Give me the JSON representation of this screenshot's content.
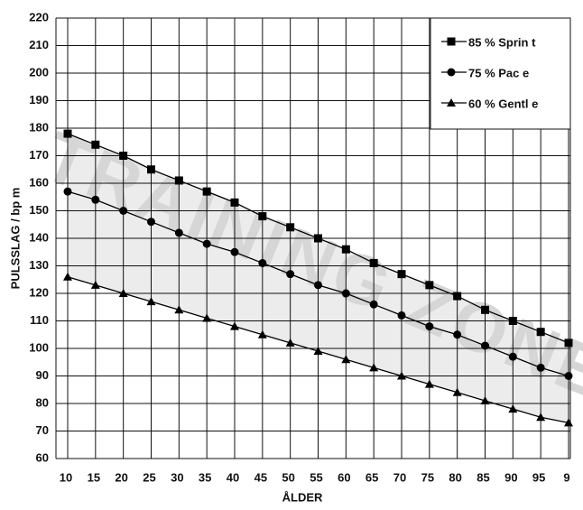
{
  "chart_data": {
    "type": "line",
    "x_label": "ÅLDER",
    "y_label": "PULSSLAG / bp m",
    "watermark": "TRAINING ZONE",
    "categories": [
      "10",
      "15",
      "20",
      "25",
      "30",
      "35",
      "40",
      "45",
      "50",
      "55",
      "60",
      "65",
      "70",
      "75",
      "80",
      "85",
      "90",
      "95",
      "9"
    ],
    "series": [
      {
        "name": "85 % Sprin t",
        "color": "#000000",
        "marker": "square",
        "values": [
          178,
          174,
          170,
          165,
          161,
          157,
          153,
          148,
          144,
          140,
          136,
          131,
          127,
          123,
          119,
          114,
          110,
          106,
          102
        ]
      },
      {
        "name": "75 % Pac e",
        "color": "#000000",
        "marker": "circle",
        "values": [
          157,
          154,
          150,
          146,
          142,
          138,
          135,
          131,
          127,
          123,
          120,
          116,
          112,
          108,
          105,
          101,
          97,
          93,
          90
        ]
      },
      {
        "name": "60 % Gentl e",
        "color": "#000000",
        "marker": "triangle",
        "values": [
          126,
          123,
          120,
          117,
          114,
          111,
          108,
          105,
          102,
          99,
          96,
          93,
          90,
          87,
          84,
          81,
          78,
          75,
          73
        ]
      }
    ],
    "ylim": [
      60,
      220
    ],
    "yticks": [
      60,
      70,
      80,
      90,
      100,
      110,
      120,
      130,
      140,
      150,
      160,
      170,
      180,
      190,
      200,
      210,
      220
    ],
    "grid": true,
    "legend": "upper right"
  }
}
